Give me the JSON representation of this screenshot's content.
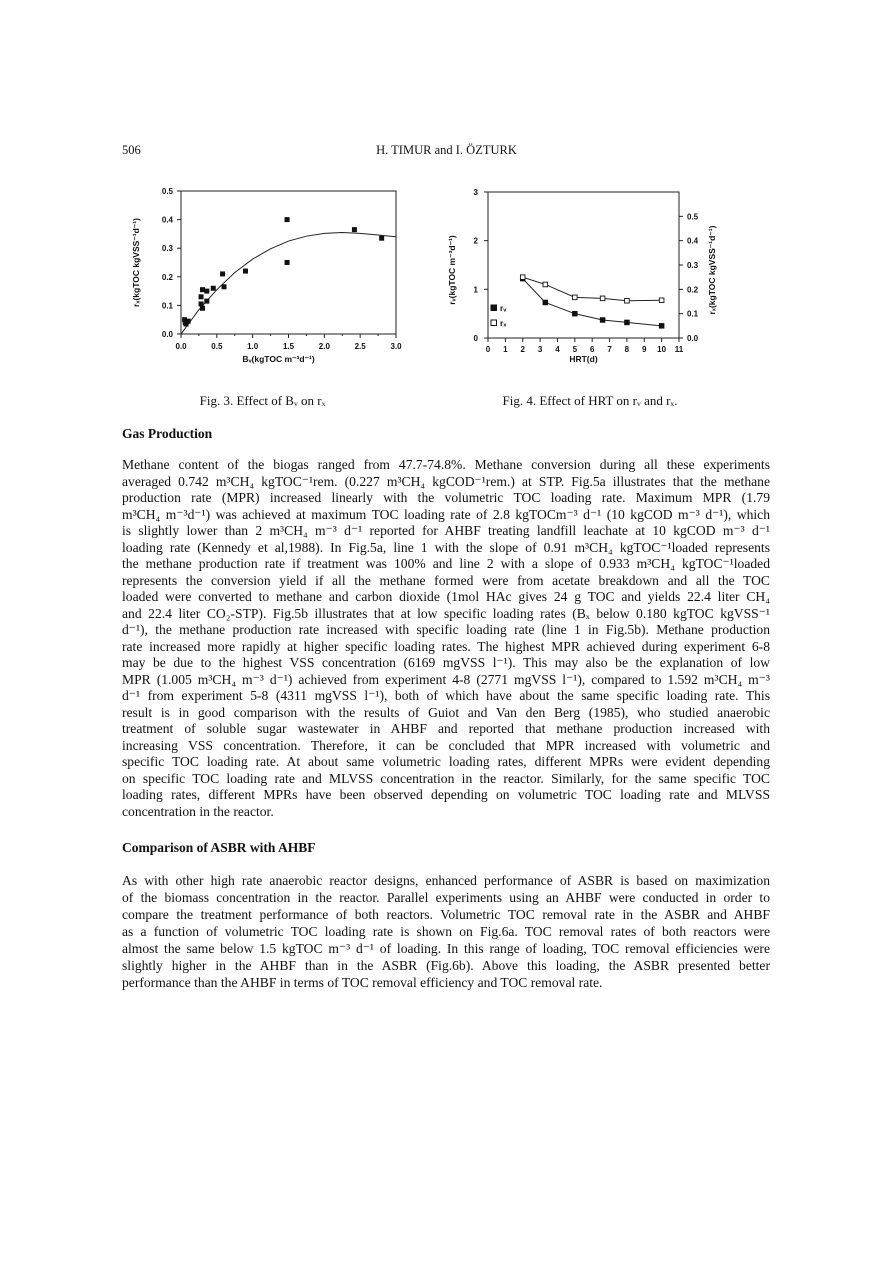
{
  "header": {
    "page_number": "506",
    "authors": "H. TIMUR and I. ÖZTURK"
  },
  "figures": {
    "fig3_caption": "Fig. 3. Effect of Bᵥ on rₓ",
    "fig4_caption": "Fig. 4. Effect of HRT on rᵥ and rₓ."
  },
  "chart_data": [
    {
      "type": "scatter",
      "xlabel": "Bᵥ(kgTOC m⁻³d⁻¹)",
      "ylabel": "rₓ(kgTOC kgVSS⁻¹d⁻¹)",
      "xlim": [
        0,
        3.0
      ],
      "ylim": [
        0,
        0.5
      ],
      "xticks": [
        "0.0",
        "0.5",
        "1.0",
        "1.5",
        "2.0",
        "2.5",
        "3.0"
      ],
      "yticks": [
        "0.0",
        "0.1",
        "0.2",
        "0.3",
        "0.4",
        "0.5"
      ],
      "grid": false,
      "points": [
        [
          0.05,
          0.05
        ],
        [
          0.06,
          0.04
        ],
        [
          0.07,
          0.035
        ],
        [
          0.1,
          0.045
        ],
        [
          0.28,
          0.13
        ],
        [
          0.28,
          0.105
        ],
        [
          0.3,
          0.155
        ],
        [
          0.3,
          0.09
        ],
        [
          0.36,
          0.15
        ],
        [
          0.36,
          0.115
        ],
        [
          0.45,
          0.16
        ],
        [
          0.58,
          0.21
        ],
        [
          0.6,
          0.165
        ],
        [
          0.9,
          0.22
        ],
        [
          1.48,
          0.4
        ],
        [
          1.48,
          0.25
        ],
        [
          2.42,
          0.365
        ],
        [
          2.8,
          0.335
        ]
      ],
      "fit_curve": [
        [
          0,
          0
        ],
        [
          0.25,
          0.085
        ],
        [
          0.5,
          0.155
        ],
        [
          0.75,
          0.215
        ],
        [
          1.0,
          0.262
        ],
        [
          1.25,
          0.298
        ],
        [
          1.5,
          0.325
        ],
        [
          1.75,
          0.342
        ],
        [
          2.0,
          0.352
        ],
        [
          2.25,
          0.355
        ],
        [
          2.5,
          0.352
        ],
        [
          2.75,
          0.346
        ],
        [
          3.0,
          0.34
        ]
      ]
    },
    {
      "type": "line",
      "xlabel": "HRT(d)",
      "ylabel": "rᵥ(kgTOC m⁻³d⁻¹)",
      "ylabel_right": "rₓ(kgTOC kgVSS⁻¹d⁻¹)",
      "xlim": [
        0,
        11
      ],
      "ylim": [
        0,
        3
      ],
      "ylim_right": [
        0,
        0.6
      ],
      "xticks": [
        "0",
        "1",
        "2",
        "3",
        "4",
        "5",
        "6",
        "7",
        "8",
        "9",
        "10",
        "11"
      ],
      "yticks": [
        "0",
        "1",
        "2",
        "3"
      ],
      "yticks_right": [
        "0.0",
        "0.1",
        "0.2",
        "0.3",
        "0.4",
        "0.5"
      ],
      "grid": false,
      "legend_position": "bottom-left",
      "series": [
        {
          "name": "rᵥ",
          "marker": "filled-square",
          "axis": "left",
          "x": [
            2,
            3.3,
            5,
            6.6,
            8,
            10
          ],
          "values": [
            1.22,
            0.73,
            0.5,
            0.37,
            0.32,
            0.25
          ]
        },
        {
          "name": "rₓ",
          "marker": "open-square",
          "axis": "right",
          "x": [
            2,
            3.3,
            5,
            6.6,
            8,
            10
          ],
          "values": [
            0.25,
            0.22,
            0.167,
            0.163,
            0.153,
            0.155
          ]
        }
      ]
    }
  ],
  "sections": [
    {
      "heading": "Gas Production",
      "lines": [
        "Methane content of the biogas ranged from 47.7-74.8%. Methane conversion during all these experiments",
        "averaged 0.742 m³CH₄ kgTOC⁻¹rem. (0.227 m³CH₄ kgCOD⁻¹rem.) at STP. Fig.5a illustrates that the methane",
        "production rate (MPR) increased linearly with the volumetric TOC loading rate. Maximum MPR (1.79",
        "m³CH₄ m⁻³d⁻¹) was achieved at maximum TOC loading rate of 2.8 kgTOCm⁻³ d⁻¹ (10 kgCOD m⁻³ d⁻¹), which",
        "is slightly lower than 2 m³CH₄ m⁻³ d⁻¹ reported for AHBF treating landfill leachate at 10 kgCOD m⁻³ d⁻¹",
        "loading rate (Kennedy et al,1988). In Fig.5a, line 1 with the slope of 0.91 m³CH₄ kgTOC⁻¹loaded represents",
        "the methane production rate if treatment was 100% and line 2 with a slope of 0.933 m³CH₄ kgTOC⁻¹loaded",
        "represents the conversion yield if all the methane formed were from acetate breakdown and all the TOC",
        "loaded were converted to methane and carbon dioxide (1mol HAc gives 24 g TOC and yields 22.4 liter CH₄",
        "and 22.4 liter CO₂-STP). Fig.5b illustrates that at low specific loading rates (Bₓ below 0.180 kgTOC kgVSS⁻¹",
        "d⁻¹), the methane production rate increased with specific loading rate (line 1 in Fig.5b). Methane production",
        "rate increased more rapidly at higher specific loading rates. The highest MPR achieved during experiment 6-8",
        "may be due to the highest VSS concentration (6169 mgVSS l⁻¹). This may also be the explanation of low",
        "MPR (1.005 m³CH₄ m⁻³ d⁻¹) achieved from experiment 4-8 (2771 mgVSS l⁻¹), compared to 1.592 m³CH₄ m⁻³",
        "d⁻¹ from experiment 5-8 (4311 mgVSS l⁻¹), both of which have about the same specific loading rate. This",
        "result is in good comparison with the results of Guiot and Van den Berg (1985), who studied anaerobic",
        "treatment of soluble sugar wastewater in AHBF and reported that methane production increased with",
        "increasing VSS concentration. Therefore, it can be concluded that MPR increased with volumetric and",
        "specific TOC loading rate. At about same volumetric loading rates, different MPRs were evident depending",
        "on specific TOC loading rate and MLVSS concentration in the reactor. Similarly, for the same specific TOC",
        "loading rates, different MPRs have been observed depending on volumetric TOC loading rate and MLVSS",
        "concentration in the reactor."
      ]
    },
    {
      "heading": "Comparison of ASBR with AHBF",
      "lines": [
        "As with other high rate anaerobic reactor designs, enhanced performance of ASBR is based on maximization",
        "of the biomass concentration in the reactor. Parallel experiments using an AHBF were conducted in order to",
        "compare the treatment performance of both reactors. Volumetric TOC removal rate in the ASBR and AHBF",
        "as a function of volumetric TOC loading rate is shown on Fig.6a. TOC removal rates of both reactors were",
        "almost the same below 1.5 kgTOC m⁻³ d⁻¹ of loading. In this range of loading, TOC removal efficiencies were",
        "slightly higher in the AHBF than in the ASBR (Fig.6b). Above this loading, the ASBR presented better",
        "performance than the AHBF in terms of TOC removal efficiency and TOC removal rate."
      ]
    }
  ]
}
